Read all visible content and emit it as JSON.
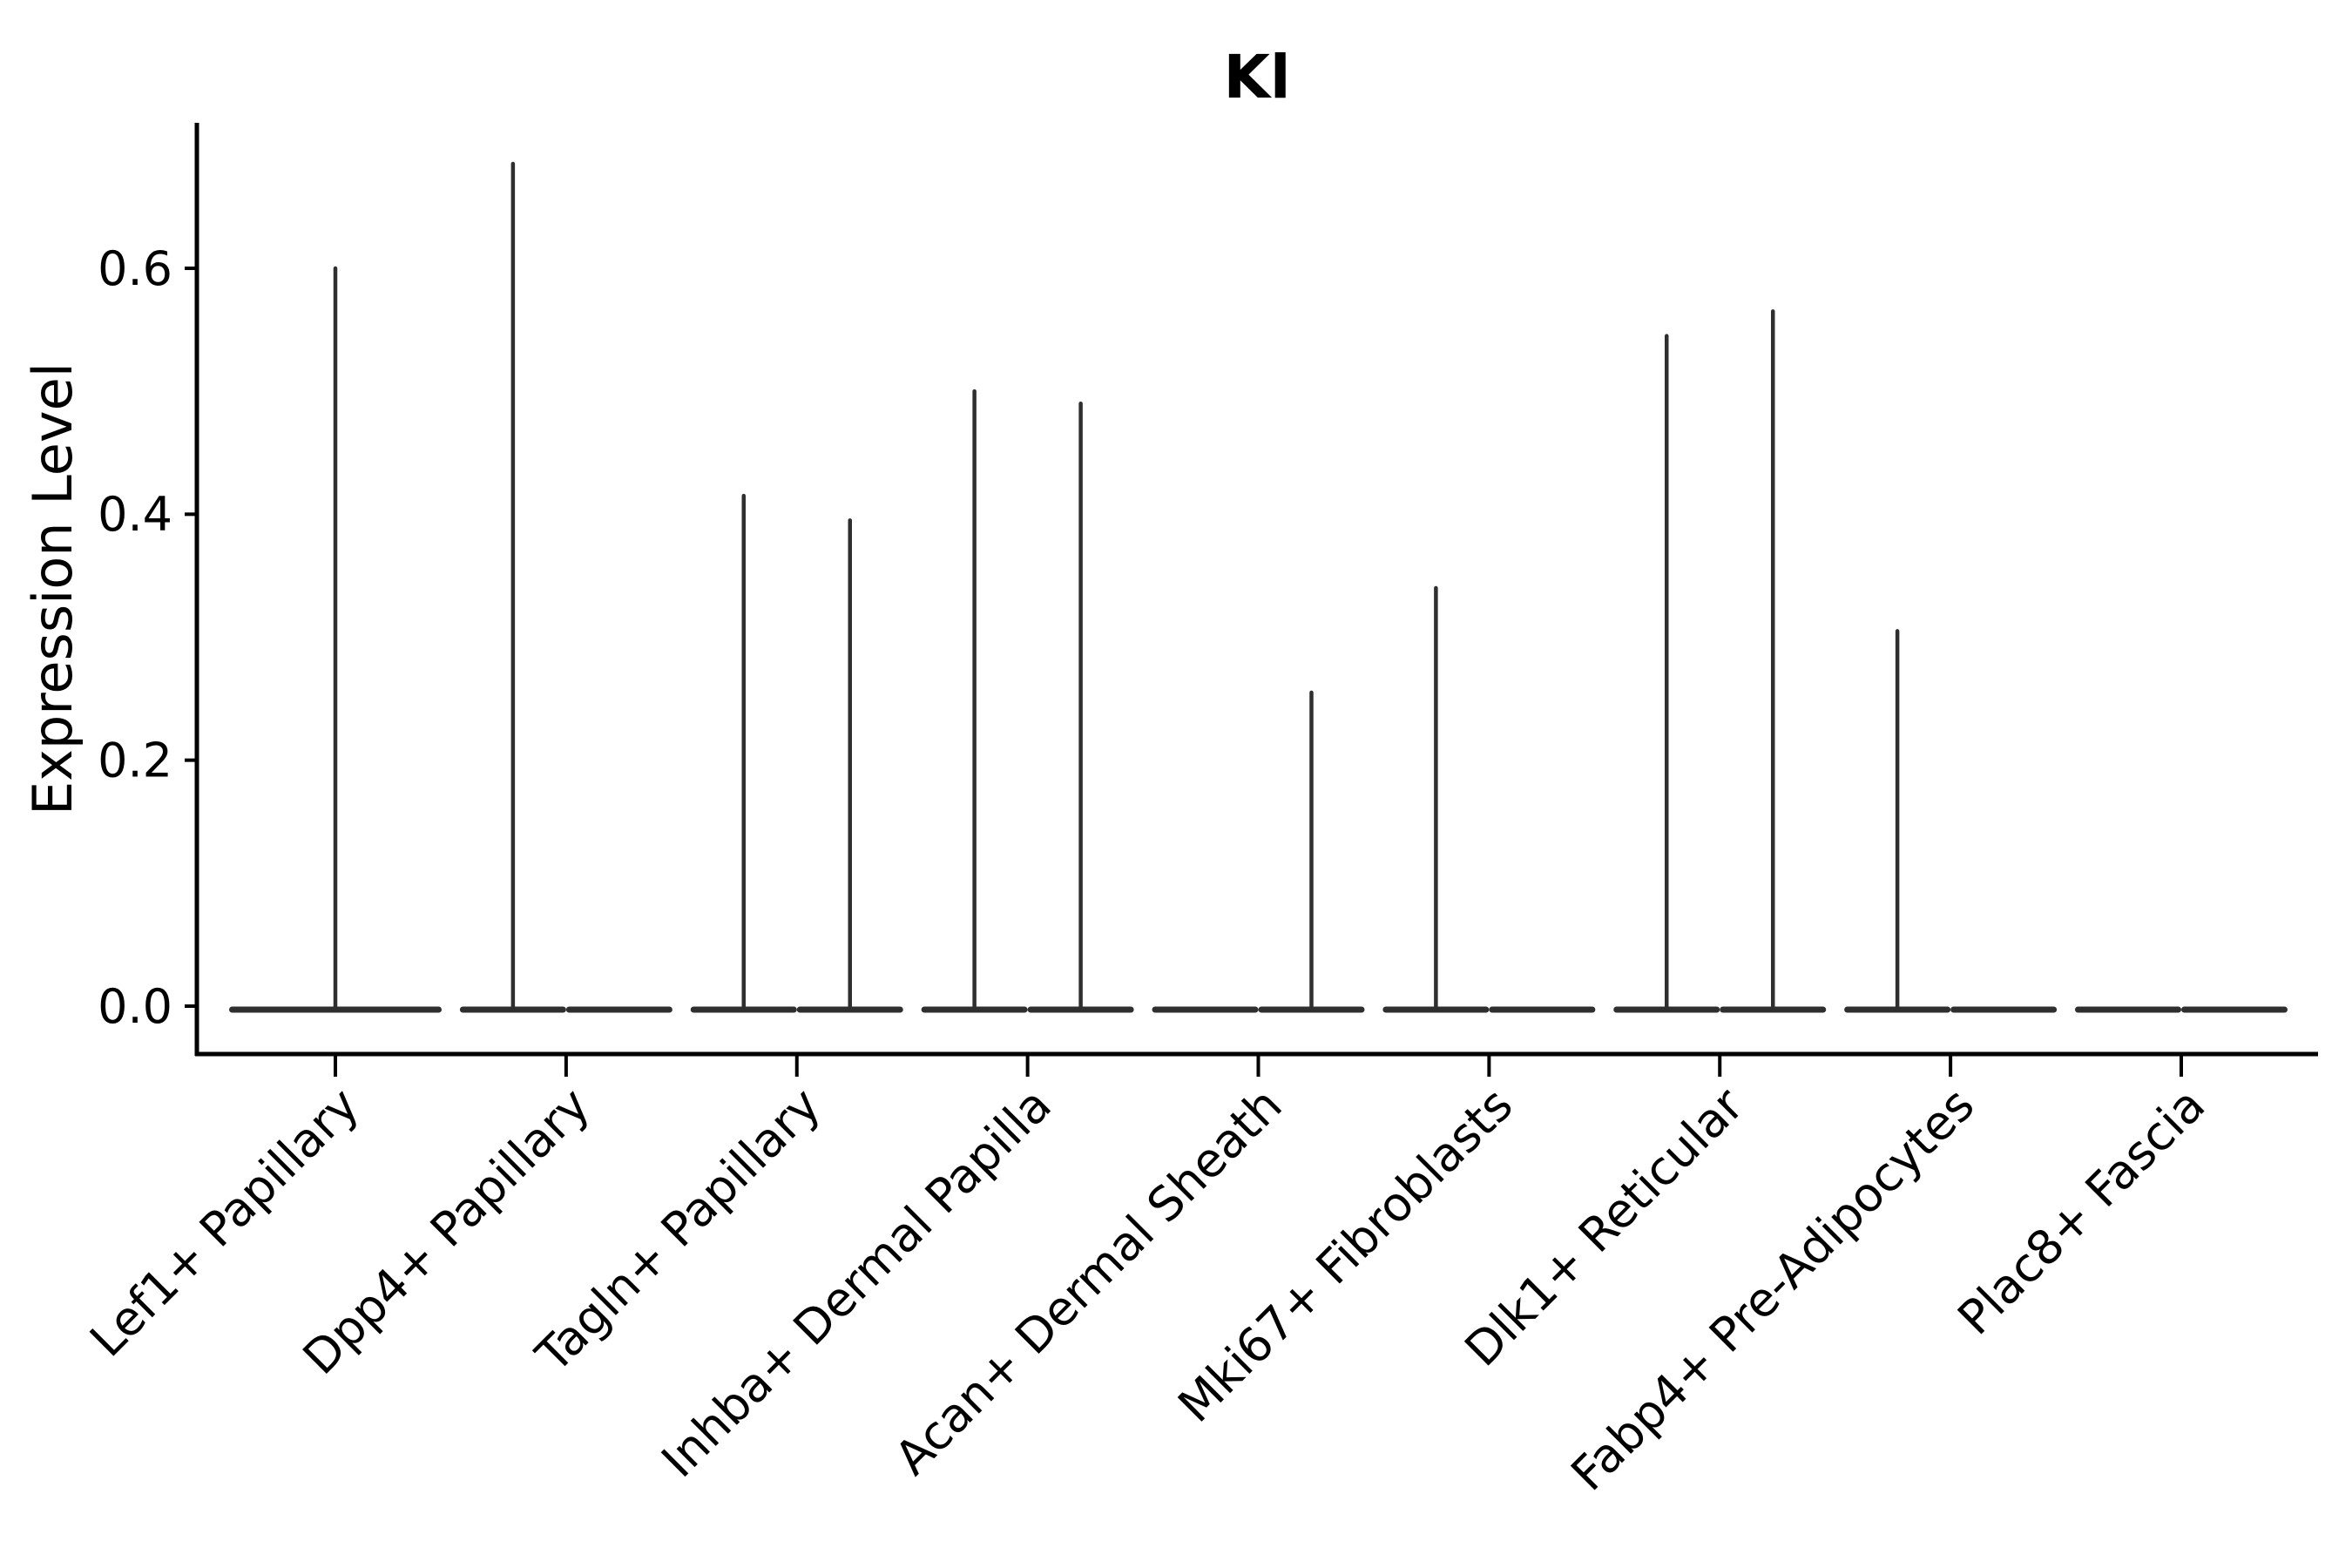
{
  "chart_data": {
    "type": "violin",
    "title": "Kl",
    "ylabel": "Expression Level",
    "xlabel": "",
    "grid": false,
    "legend": "none",
    "ylim": [
      0,
      0.715
    ],
    "yticks": [
      {
        "label": "0.0",
        "value": 0.0
      },
      {
        "label": "0.2",
        "value": 0.2
      },
      {
        "label": "0.4",
        "value": 0.4
      },
      {
        "label": "0.6",
        "value": 0.6
      }
    ],
    "colors": {
      "violin_stroke": "#2f2f2f",
      "axis": "#000000",
      "text": "#000000",
      "background": "#ffffff"
    },
    "description": "Violin plot of Kl expression; most cells at 0 giving flat bases with thin spikes to the maximum expression value. Some categories contain two side-by-side (dodged) violins.",
    "categories": [
      {
        "label": "Lef1+ Papillary",
        "violins": [
          {
            "pos": "center",
            "max": 0.6
          }
        ]
      },
      {
        "label": "Dpp4+ Papillary",
        "violins": [
          {
            "pos": "left",
            "max": 0.685
          },
          {
            "pos": "right",
            "max": 0
          }
        ]
      },
      {
        "label": "Tagln+ Papillary",
        "violins": [
          {
            "pos": "left",
            "max": 0.415
          },
          {
            "pos": "right",
            "max": 0.395
          }
        ]
      },
      {
        "label": "Inhba+ Dermal Papilla",
        "violins": [
          {
            "pos": "left",
            "max": 0.5
          },
          {
            "pos": "right",
            "max": 0.49
          }
        ]
      },
      {
        "label": "Acan+ Dermal Sheath",
        "violins": [
          {
            "pos": "left",
            "max": 0
          },
          {
            "pos": "right",
            "max": 0.255
          }
        ]
      },
      {
        "label": "Mki67+ Fibroblasts",
        "violins": [
          {
            "pos": "left",
            "max": 0.34
          },
          {
            "pos": "right",
            "max": 0
          }
        ]
      },
      {
        "label": "Dlk1+ Reticular",
        "violins": [
          {
            "pos": "left",
            "max": 0.545
          },
          {
            "pos": "right",
            "max": 0.565
          }
        ]
      },
      {
        "label": "Fabp4+ Pre-Adipocytes",
        "violins": [
          {
            "pos": "left",
            "max": 0.305
          },
          {
            "pos": "right",
            "max": 0
          }
        ]
      },
      {
        "label": "Plac8+ Fascia",
        "violins": [
          {
            "pos": "left",
            "max": 0
          },
          {
            "pos": "right",
            "max": 0
          }
        ]
      }
    ]
  }
}
